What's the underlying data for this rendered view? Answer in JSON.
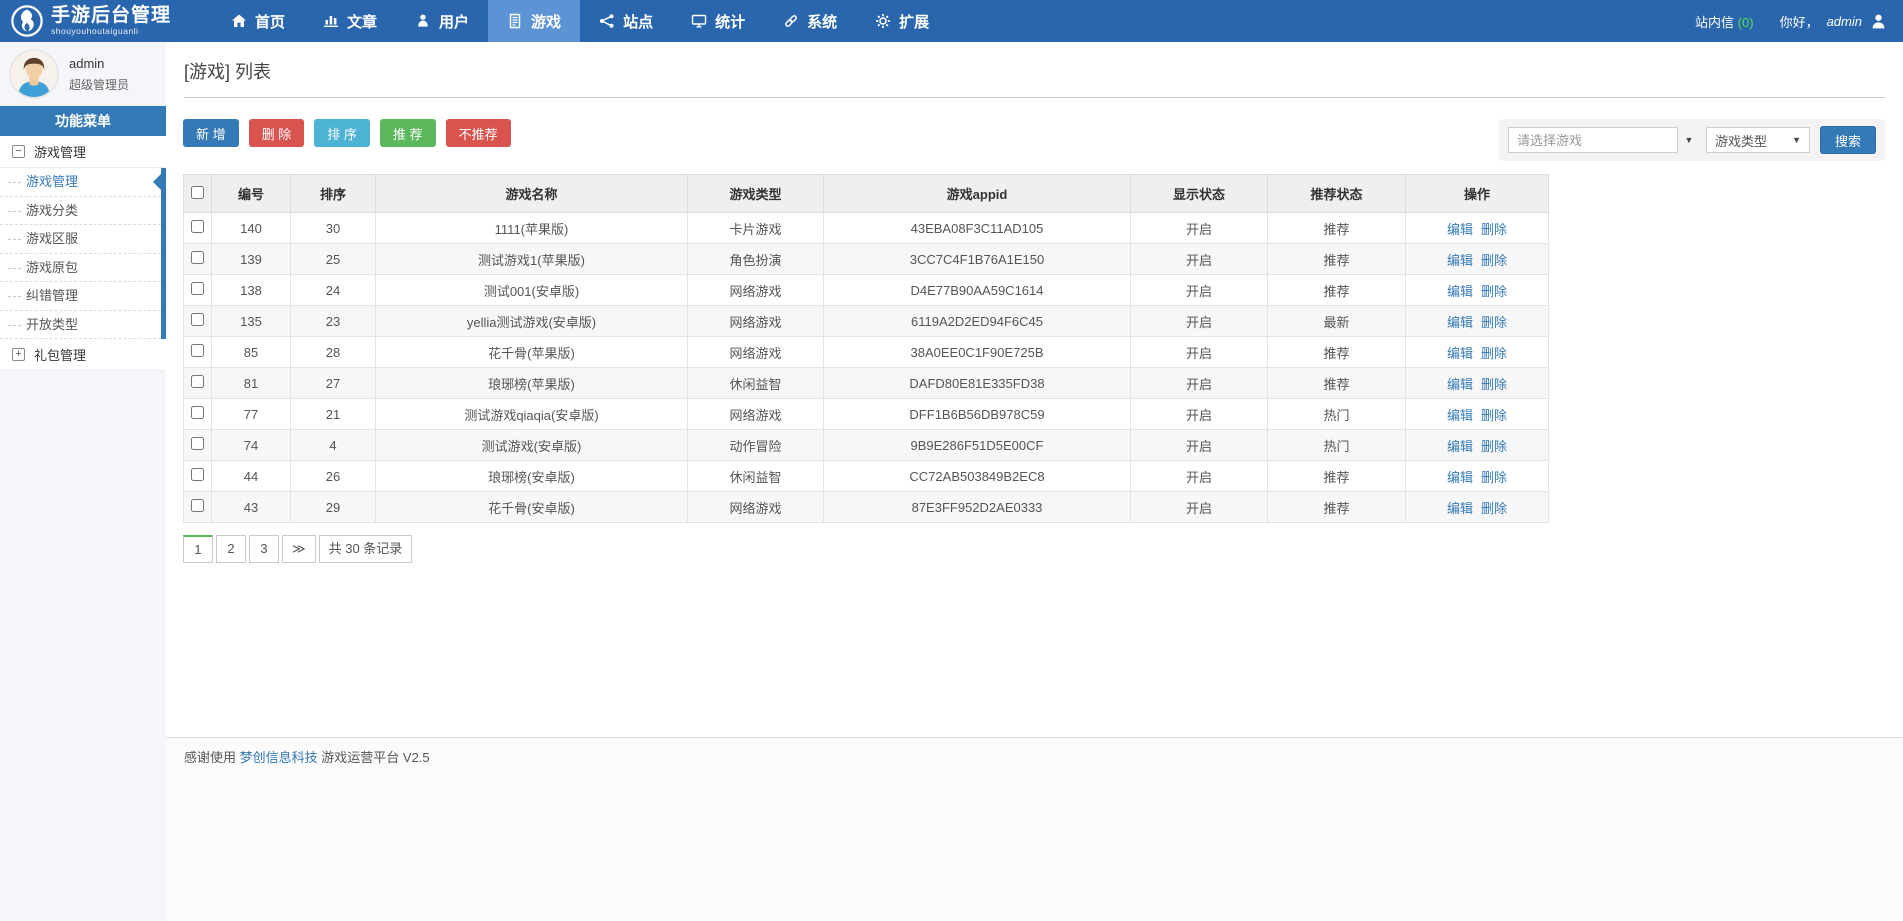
{
  "colors": {
    "navbar_bg": "#2a66ad",
    "navbar_active_bg": "#5b93d4",
    "primary_blue": "#337ab7",
    "danger_red": "#d9534f",
    "info_teal": "#4cb3d4",
    "success_green": "#5cb85c",
    "message_count_green": "#55dd55",
    "table_header_bg": "#efefef"
  },
  "topbar": {
    "logo_title": "手游后台管理",
    "logo_subtitle": "shouyouhoutaiguanli",
    "nav": [
      {
        "label": "首页",
        "icon": "home-icon",
        "active": false
      },
      {
        "label": "文章",
        "icon": "articles-icon",
        "active": false
      },
      {
        "label": "用户",
        "icon": "users-icon",
        "active": false
      },
      {
        "label": "游戏",
        "icon": "games-icon",
        "active": true
      },
      {
        "label": "站点",
        "icon": "sites-icon",
        "active": false
      },
      {
        "label": "统计",
        "icon": "stats-icon",
        "active": false
      },
      {
        "label": "系统",
        "icon": "system-icon",
        "active": false
      },
      {
        "label": "扩展",
        "icon": "extensions-icon",
        "active": false
      }
    ],
    "messages_label": "站内信",
    "messages_count": "(0)",
    "greeting_prefix": "你好，",
    "username": "admin"
  },
  "sidebar": {
    "profile_name": "admin",
    "profile_role": "超级管理员",
    "menu_title": "功能菜单",
    "groups": [
      {
        "label": "游戏管理",
        "toggle": "−",
        "expanded": true,
        "items": [
          {
            "label": "游戏管理",
            "active": true
          },
          {
            "label": "游戏分类",
            "active": false
          },
          {
            "label": "游戏区服",
            "active": false
          },
          {
            "label": "游戏原包",
            "active": false
          },
          {
            "label": "纠错管理",
            "active": false
          },
          {
            "label": "开放类型",
            "active": false
          }
        ]
      },
      {
        "label": "礼包管理",
        "toggle": "+",
        "expanded": false
      }
    ]
  },
  "main": {
    "page_title": "[游戏] 列表",
    "toolbar": [
      {
        "label": "新 增",
        "style": "primary",
        "name": "add-button"
      },
      {
        "label": "删 除",
        "style": "danger",
        "name": "delete-button"
      },
      {
        "label": "排 序",
        "style": "info",
        "name": "sort-button"
      },
      {
        "label": "推 荐",
        "style": "success",
        "name": "recommend-button"
      },
      {
        "label": "不推荐",
        "style": "danger",
        "name": "unrecommend-button"
      }
    ],
    "search": {
      "game_placeholder": "请选择游戏",
      "type_label": "游戏类型",
      "button_label": "搜索"
    },
    "table": {
      "headers": [
        "编号",
        "排序",
        "游戏名称",
        "游戏类型",
        "游戏appid",
        "显示状态",
        "推荐状态",
        "操作"
      ],
      "ops": {
        "edit": "编辑",
        "delete": "删除"
      },
      "rows": [
        {
          "id": "140",
          "sort": "30",
          "name": "1111(苹果版)",
          "type": "卡片游戏",
          "appid": "43EBA08F3C11AD105",
          "display_status": "开启",
          "recommend_status": "推荐"
        },
        {
          "id": "139",
          "sort": "25",
          "name": "测试游戏1(苹果版)",
          "type": "角色扮演",
          "appid": "3CC7C4F1B76A1E150",
          "display_status": "开启",
          "recommend_status": "推荐"
        },
        {
          "id": "138",
          "sort": "24",
          "name": "测试001(安卓版)",
          "type": "网络游戏",
          "appid": "D4E77B90AA59C1614",
          "display_status": "开启",
          "recommend_status": "推荐"
        },
        {
          "id": "135",
          "sort": "23",
          "name": "yellia测试游戏(安卓版)",
          "type": "网络游戏",
          "appid": "6119A2D2ED94F6C45",
          "display_status": "开启",
          "recommend_status": "最新"
        },
        {
          "id": "85",
          "sort": "28",
          "name": "花千骨(苹果版)",
          "type": "网络游戏",
          "appid": "38A0EE0C1F90E725B",
          "display_status": "开启",
          "recommend_status": "推荐"
        },
        {
          "id": "81",
          "sort": "27",
          "name": "琅琊榜(苹果版)",
          "type": "休闲益智",
          "appid": "DAFD80E81E335FD38",
          "display_status": "开启",
          "recommend_status": "推荐"
        },
        {
          "id": "77",
          "sort": "21",
          "name": "测试游戏qiaqia(安卓版)",
          "type": "网络游戏",
          "appid": "DFF1B6B56DB978C59",
          "display_status": "开启",
          "recommend_status": "热门"
        },
        {
          "id": "74",
          "sort": "4",
          "name": "测试游戏(安卓版)",
          "type": "动作冒险",
          "appid": "9B9E286F51D5E00CF",
          "display_status": "开启",
          "recommend_status": "热门"
        },
        {
          "id": "44",
          "sort": "26",
          "name": "琅琊榜(安卓版)",
          "type": "休闲益智",
          "appid": "CC72AB503849B2EC8",
          "display_status": "开启",
          "recommend_status": "推荐"
        },
        {
          "id": "43",
          "sort": "29",
          "name": "花千骨(安卓版)",
          "type": "网络游戏",
          "appid": "87E3FF952D2AE0333",
          "display_status": "开启",
          "recommend_status": "推荐"
        }
      ]
    },
    "pagination": {
      "pages": [
        "1",
        "2",
        "3"
      ],
      "active": "1",
      "next_label": "≫",
      "total_label": "共 30 条记录"
    },
    "footer": {
      "prefix": "感谢使用",
      "link": "梦创信息科技",
      "suffix": "游戏运营平台 V2.5"
    }
  }
}
